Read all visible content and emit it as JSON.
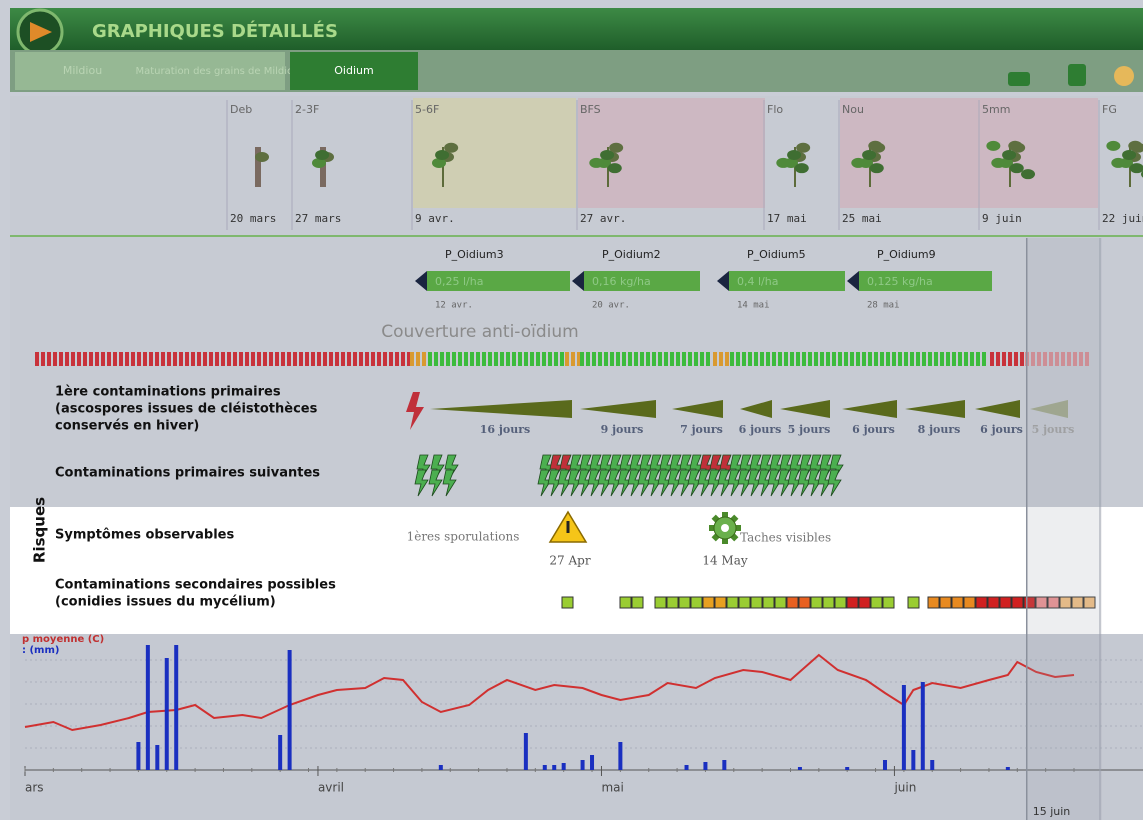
{
  "header": {
    "title": "GRAPHIQUES DÉTAILLÉS"
  },
  "tabs": [
    "Mildiou",
    "Maturation des grains de Mildiou",
    "Oidium"
  ],
  "stages": [
    {
      "code": "Deb",
      "date": "20 mars"
    },
    {
      "code": "2-3F",
      "date": "27 mars"
    },
    {
      "code": "5-6F",
      "date": "9 avr."
    },
    {
      "code": "BFS",
      "date": "27 avr."
    },
    {
      "code": "Flo",
      "date": "17 mai"
    },
    {
      "code": "Nou",
      "date": "25 mai"
    },
    {
      "code": "5mm",
      "date": "9 juin"
    },
    {
      "code": "FG",
      "date": "22 juin"
    }
  ],
  "treatments": [
    {
      "product": "P_Oidium3",
      "dose": "0,25 l/ha",
      "date": "12 avr."
    },
    {
      "product": "P_Oidium2",
      "dose": "0,16 kg/ha",
      "date": "20 avr."
    },
    {
      "product": "P_Oidium5",
      "dose": "0,4 l/ha",
      "date": "14 mai"
    },
    {
      "product": "P_Oidium9",
      "dose": "0,125 kg/ha",
      "date": "28 mai"
    }
  ],
  "coverage": {
    "label": "Couverture anti-oïdium"
  },
  "risks": {
    "label": "Risques",
    "primary": {
      "lines": [
        "1ère contaminations primaires",
        "(ascospores issues de cléistothèces",
        "conservés en hiver)"
      ],
      "durations": [
        "16 jours",
        "9 jours",
        "7 jours",
        "6 jours",
        "5 jours",
        "6 jours",
        "8 jours",
        "6 jours",
        "5 jours"
      ]
    },
    "following": {
      "label": "Contaminations primaires suivantes"
    },
    "symptoms": {
      "label": "Symptômes observables",
      "first": "1ères sporulations",
      "first_date": "27 Apr",
      "visible": "Taches visibles",
      "visible_date": "14 May"
    },
    "secondary": {
      "lines": [
        "Contaminations secondaires possibles",
        "(conidies issues du mycélium)"
      ]
    }
  },
  "chart_data": {
    "type": "line",
    "legend": [
      "p moyenne (C)",
      ": (mm)"
    ],
    "xlim": [
      0,
      111
    ],
    "xticks": [
      {
        "value": 0,
        "label": "ars"
      },
      {
        "value": 31,
        "label": "avril"
      },
      {
        "value": 61,
        "label": "mai"
      },
      {
        "value": 92,
        "label": "juin"
      }
    ],
    "marker": {
      "value": 106,
      "label": "15 juin"
    },
    "ylim": [
      0,
      31.25
    ],
    "series": [
      {
        "name": "temperature",
        "color": "#d03030",
        "x": [
          0,
          3,
          5,
          8,
          11,
          13,
          16,
          18,
          20,
          23,
          25,
          28,
          31,
          33,
          36,
          38,
          40,
          42,
          44,
          47,
          49,
          51,
          54,
          56,
          59,
          61,
          63,
          66,
          68,
          71,
          73,
          76,
          78,
          81,
          84,
          86,
          89,
          91,
          93,
          94,
          96,
          99,
          102,
          104,
          105,
          107,
          109,
          111
        ],
        "values": [
          10.75,
          12,
          10,
          11.25,
          13,
          14.5,
          15,
          16.25,
          13,
          13.75,
          13,
          16.25,
          18.75,
          20,
          20.5,
          23,
          22.5,
          17,
          14.5,
          16.25,
          20,
          22.5,
          20,
          21.25,
          20.5,
          18.75,
          17.5,
          18.75,
          21.75,
          20.5,
          23,
          25,
          24.5,
          22.5,
          28.75,
          25,
          22.5,
          19.25,
          16.25,
          20,
          21.75,
          20.5,
          22.5,
          23.75,
          27,
          24.5,
          23.25,
          23.75
        ]
      },
      {
        "name": "rain",
        "color": "#1a2fc0",
        "x": [
          12,
          13,
          14,
          15,
          16,
          27,
          28,
          44,
          53,
          55,
          56,
          57,
          59,
          60,
          63,
          70,
          72,
          74,
          82,
          87,
          91,
          93,
          94,
          95,
          96,
          104
        ],
        "values": [
          7,
          31.25,
          6.25,
          28,
          31.25,
          8.75,
          30,
          1.25,
          9.25,
          1.25,
          1.25,
          1.75,
          2.5,
          3.75,
          7,
          1.25,
          2,
          2.5,
          0.75,
          0.75,
          2.5,
          21.25,
          5,
          22,
          2.5,
          0.75
        ]
      }
    ]
  }
}
